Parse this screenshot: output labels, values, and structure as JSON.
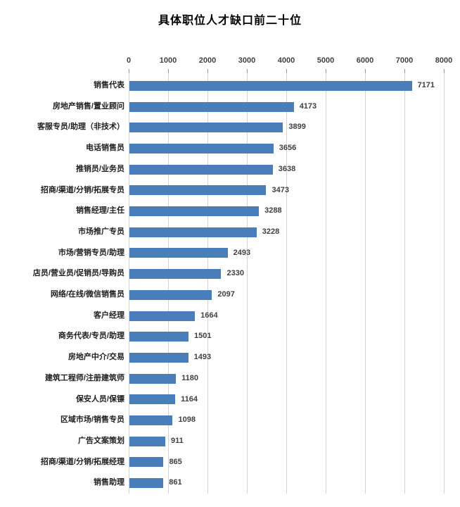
{
  "chart_data": {
    "type": "bar",
    "orientation": "horizontal",
    "title": "具体职位人才缺口前二十位",
    "categories": [
      "销售代表",
      "房地产销售/置业顾问",
      "客服专员/助理（非技术）",
      "电话销售员",
      "推销员/业务员",
      "招商/渠道/分销/拓展专员",
      "销售经理/主任",
      "市场推广专员",
      "市场/营销专员/助理",
      "店员/营业员/促销员/导购员",
      "网络/在线/微信销售员",
      "客户经理",
      "商务代表/专员/助理",
      "房地产中介/交易",
      "建筑工程师/注册建筑师",
      "保安人员/保镖",
      "区域市场/销售专员",
      "广告文案策划",
      "招商/渠道/分销/拓展经理",
      "销售助理"
    ],
    "values": [
      7171,
      4173,
      3899,
      3656,
      3638,
      3473,
      3288,
      3228,
      2493,
      2330,
      2097,
      1664,
      1501,
      1493,
      1180,
      1164,
      1098,
      911,
      865,
      861
    ],
    "xlabel": "",
    "ylabel": "",
    "xlim": [
      0,
      8000
    ],
    "x_ticks": [
      0,
      1000,
      2000,
      3000,
      4000,
      5000,
      6000,
      7000,
      8000
    ],
    "grid": true,
    "data_labels": true,
    "legend": "none",
    "colors": {
      "bar": "#4A7EBB",
      "gridline": "#D4D4D4",
      "tick_mark": "#9B9B9B",
      "tick_label": "#404040",
      "category_label": "#1F1F1F",
      "value_label": "#3F3F3F",
      "title": "#000000",
      "background": "#FFFFFF"
    }
  }
}
